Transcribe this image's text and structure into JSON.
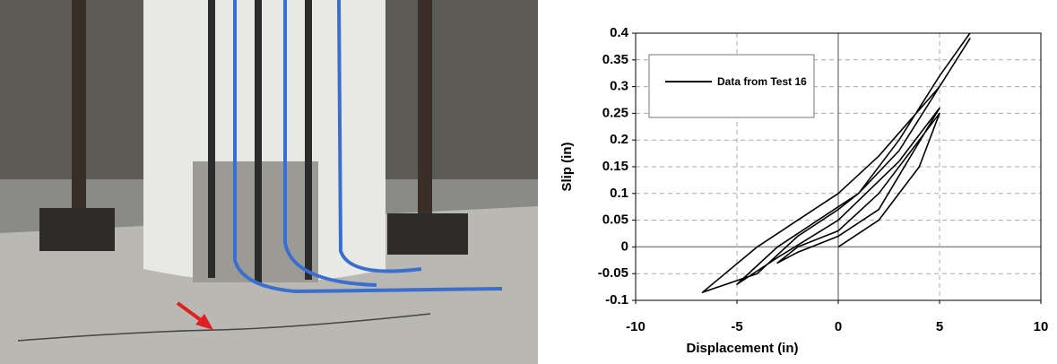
{
  "chart_data": {
    "type": "line",
    "xlabel": "Displacement (in)",
    "ylabel": "Slip (in)",
    "xlim": [
      -10,
      10
    ],
    "xticks": [
      -10,
      -5,
      0,
      5,
      10
    ],
    "ylim": [
      -0.1,
      0.4
    ],
    "yticks": [
      -0.1,
      -0.05,
      0,
      0.05,
      0.1,
      0.15,
      0.2,
      0.25,
      0.3,
      0.35,
      0.4
    ],
    "grid": true,
    "legend": "upper left",
    "x": [
      0,
      2,
      4,
      5,
      4,
      2,
      0,
      -2,
      -3,
      -2,
      0,
      2,
      5,
      3,
      0,
      -3,
      -5,
      -3,
      -1,
      1,
      3,
      5,
      6.5,
      5,
      2,
      0,
      -2,
      -4,
      -6.7,
      -4,
      -2,
      0,
      1,
      3,
      5,
      6.5
    ],
    "series": [
      {
        "name": "Data from Test 16",
        "color": "#000000",
        "values": [
          0,
          0.05,
          0.15,
          0.25,
          0.2,
          0.1,
          0.03,
          0,
          -0.03,
          -0.01,
          0.02,
          0.07,
          0.26,
          0.16,
          0.05,
          -0.02,
          -0.07,
          0,
          0.05,
          0.1,
          0.18,
          0.3,
          0.39,
          0.3,
          0.17,
          0.1,
          0.05,
          0,
          -0.085,
          -0.05,
          0.02,
          0.07,
          0.1,
          0.2,
          0.32,
          0.4
        ]
      }
    ]
  }
}
